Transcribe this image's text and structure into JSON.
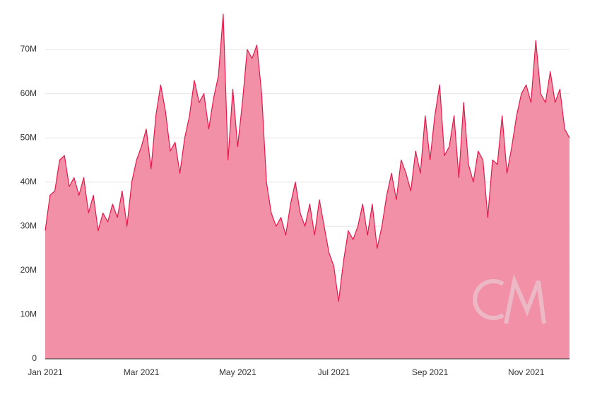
{
  "chart_data": {
    "type": "area",
    "categories": [
      "Jan 2021",
      null,
      null,
      null,
      null,
      null,
      null,
      null,
      null,
      null,
      null,
      null,
      null,
      null,
      null,
      null,
      null,
      null,
      null,
      null,
      "Mar 2021",
      null,
      null,
      null,
      null,
      null,
      null,
      null,
      null,
      null,
      null,
      null,
      null,
      null,
      null,
      null,
      null,
      null,
      null,
      null,
      "May 2021",
      null,
      null,
      null,
      null,
      null,
      null,
      null,
      null,
      null,
      null,
      null,
      null,
      null,
      null,
      null,
      null,
      null,
      null,
      null,
      "Jul 2021",
      null,
      null,
      null,
      null,
      null,
      null,
      null,
      null,
      null,
      null,
      null,
      null,
      null,
      null,
      null,
      null,
      null,
      null,
      null,
      "Sep 2021",
      null,
      null,
      null,
      null,
      null,
      null,
      null,
      null,
      null,
      null,
      null,
      null,
      null,
      null,
      null,
      null,
      null,
      null,
      null,
      "Nov 2021",
      null,
      null,
      null,
      null,
      null,
      null,
      null,
      null,
      null
    ],
    "values": [
      29000000,
      37000000,
      38000000,
      45000000,
      46000000,
      39000000,
      41000000,
      37000000,
      41000000,
      33000000,
      37000000,
      29000000,
      33000000,
      31000000,
      35000000,
      32000000,
      38000000,
      30000000,
      40000000,
      45000000,
      48000000,
      52000000,
      43000000,
      55000000,
      62000000,
      56000000,
      47000000,
      49000000,
      42000000,
      50000000,
      55000000,
      63000000,
      58000000,
      60000000,
      52000000,
      59000000,
      64000000,
      78000000,
      45000000,
      61000000,
      48000000,
      58000000,
      70000000,
      68000000,
      71000000,
      60000000,
      40000000,
      33000000,
      30000000,
      32000000,
      28000000,
      35000000,
      40000000,
      33000000,
      30000000,
      35000000,
      28000000,
      36000000,
      30000000,
      24000000,
      21000000,
      13000000,
      22000000,
      29000000,
      27000000,
      30000000,
      35000000,
      28000000,
      35000000,
      25000000,
      30000000,
      37000000,
      42000000,
      36000000,
      45000000,
      42000000,
      38000000,
      47000000,
      42000000,
      55000000,
      45000000,
      55000000,
      62000000,
      46000000,
      48000000,
      55000000,
      41000000,
      58000000,
      44000000,
      40000000,
      47000000,
      45000000,
      32000000,
      45000000,
      44000000,
      55000000,
      42000000,
      48000000,
      55000000,
      60000000,
      62000000,
      58000000,
      72000000,
      60000000,
      58000000,
      65000000,
      58000000,
      61000000,
      52000000,
      50000000
    ],
    "color": "#e8174a",
    "fill": "#f08aa2",
    "ylim": [
      0,
      78000000
    ],
    "yticks": [
      0,
      {
        "value": 10000000,
        "label": "10M"
      },
      {
        "value": 20000000,
        "label": "20M"
      },
      {
        "value": 30000000,
        "label": "30M"
      },
      {
        "value": 40000000,
        "label": "40M"
      },
      {
        "value": 50000000,
        "label": "50M"
      },
      {
        "value": 60000000,
        "label": "60M"
      },
      {
        "value": 70000000,
        "label": "70M"
      }
    ],
    "grid": true
  }
}
